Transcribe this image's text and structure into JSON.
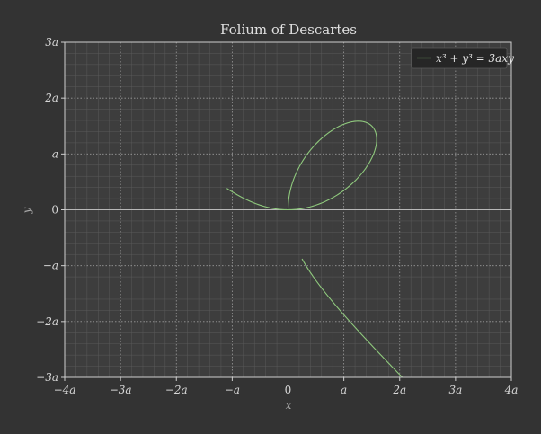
{
  "chart_data": {
    "type": "line",
    "title": "Folium of Descartes",
    "xlabel": "x",
    "ylabel": "y",
    "xlim": [
      -4,
      4
    ],
    "ylim": [
      -3,
      3
    ],
    "x_ticks": [
      {
        "v": -4,
        "label": "−4a"
      },
      {
        "v": -3,
        "label": "−3a"
      },
      {
        "v": -2,
        "label": "−2a"
      },
      {
        "v": -1,
        "label": "−a"
      },
      {
        "v": 0,
        "label": "0"
      },
      {
        "v": 1,
        "label": "a"
      },
      {
        "v": 2,
        "label": "2a"
      },
      {
        "v": 3,
        "label": "3a"
      },
      {
        "v": 4,
        "label": "4a"
      }
    ],
    "y_ticks": [
      {
        "v": -3,
        "label": "−3a"
      },
      {
        "v": -2,
        "label": "−2a"
      },
      {
        "v": -1,
        "label": "−a"
      },
      {
        "v": 0,
        "label": "0"
      },
      {
        "v": 1,
        "label": "a"
      },
      {
        "v": 2,
        "label": "2a"
      },
      {
        "v": 3,
        "label": "3a"
      }
    ],
    "grid": true,
    "minor_grid": true,
    "legend": "top-right",
    "series": [
      {
        "name": "x³ + y³ = 3axy",
        "color": "#8fc97d",
        "equation": "x^3 + y^3 = 3axy",
        "a": 1
      }
    ]
  },
  "colors": {
    "background": "#333333",
    "plot_area": "#3d3d3d",
    "grid_major": "#9a9a9a",
    "grid_minor": "#5a5a5a",
    "axes": "#cfcfcf",
    "text": "#d8d8d8",
    "legend_bg": "#262626"
  }
}
